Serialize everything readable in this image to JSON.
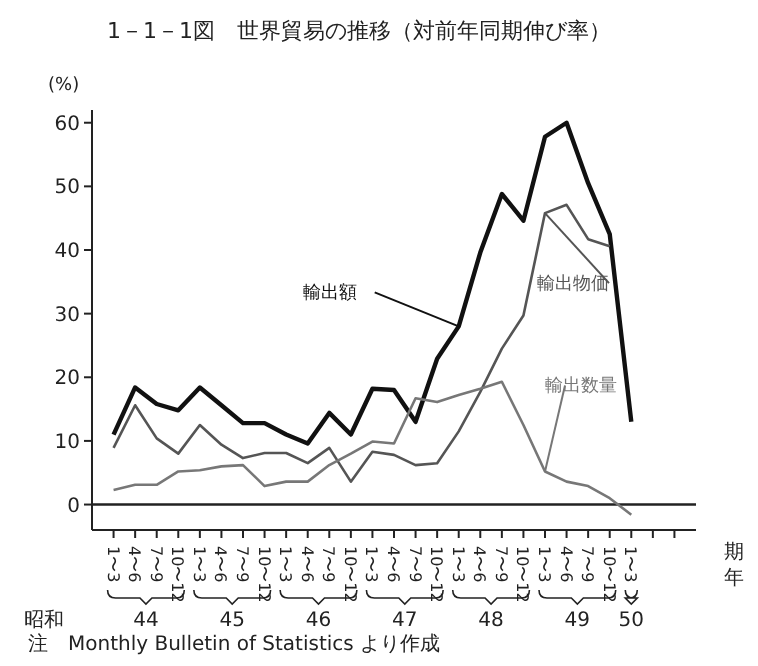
{
  "chart_data": {
    "type": "line",
    "title": "1－1－1図　世界貿易の推移（対前年同期伸び率）",
    "ylabel": "(%)",
    "xlabel": "期年",
    "categories": [
      "1〜3",
      "4〜6",
      "7〜9",
      "10〜12",
      "1〜3",
      "4〜6",
      "7〜9",
      "10〜12",
      "1〜3",
      "4〜6",
      "7〜9",
      "10〜12",
      "1〜3",
      "4〜6",
      "7〜9",
      "10〜12",
      "1〜3",
      "4〜6",
      "7〜9",
      "10〜12",
      "1〜3",
      "4〜6",
      "7〜9",
      "10〜12",
      "1〜3",
      null,
      null
    ],
    "series": [
      {
        "name": "輸出額",
        "color": "#111111",
        "values": [
          11,
          18.4,
          15.8,
          14.8,
          18.4,
          15.6,
          12.8,
          12.8,
          11,
          9.6,
          14.4,
          11,
          18.2,
          18,
          13,
          22.9,
          28,
          39.6,
          48.8,
          44.6,
          57.8,
          60,
          50.5,
          42.5,
          13,
          null,
          null
        ]
      },
      {
        "name": "輸出物価",
        "color": "#555555",
        "values": [
          8.9,
          15.6,
          10.4,
          8,
          12.5,
          9.4,
          7.3,
          8.1,
          8.1,
          6.5,
          8.9,
          3.6,
          8.3,
          7.8,
          6.2,
          6.5,
          11.5,
          17.7,
          24.5,
          29.7,
          45.8,
          47.1,
          41.7,
          40.6,
          null,
          null,
          null
        ]
      },
      {
        "name": "輸出数量",
        "color": "#777777",
        "values": [
          2.3,
          3.1,
          3.1,
          5.2,
          5.4,
          6,
          6.2,
          2.9,
          3.6,
          3.6,
          6.2,
          8,
          9.9,
          9.6,
          16.7,
          16.1,
          17.2,
          18.2,
          19.3,
          12.5,
          5.2,
          3.6,
          2.9,
          1,
          -1.6,
          null,
          null
        ]
      }
    ],
    "ylim": [
      -4,
      62
    ],
    "yticks": [
      0,
      10,
      20,
      30,
      40,
      50,
      60
    ],
    "grid": false,
    "legend": false,
    "marker": "none",
    "line_style": "solid",
    "ref_lines": [
      {
        "axis": "y",
        "value": 0
      }
    ],
    "annotations": [
      "昭和",
      "44",
      "45",
      "46",
      "47",
      "48",
      "49",
      "50",
      "注　Monthly Bulletin of Statistics より作成"
    ]
  }
}
